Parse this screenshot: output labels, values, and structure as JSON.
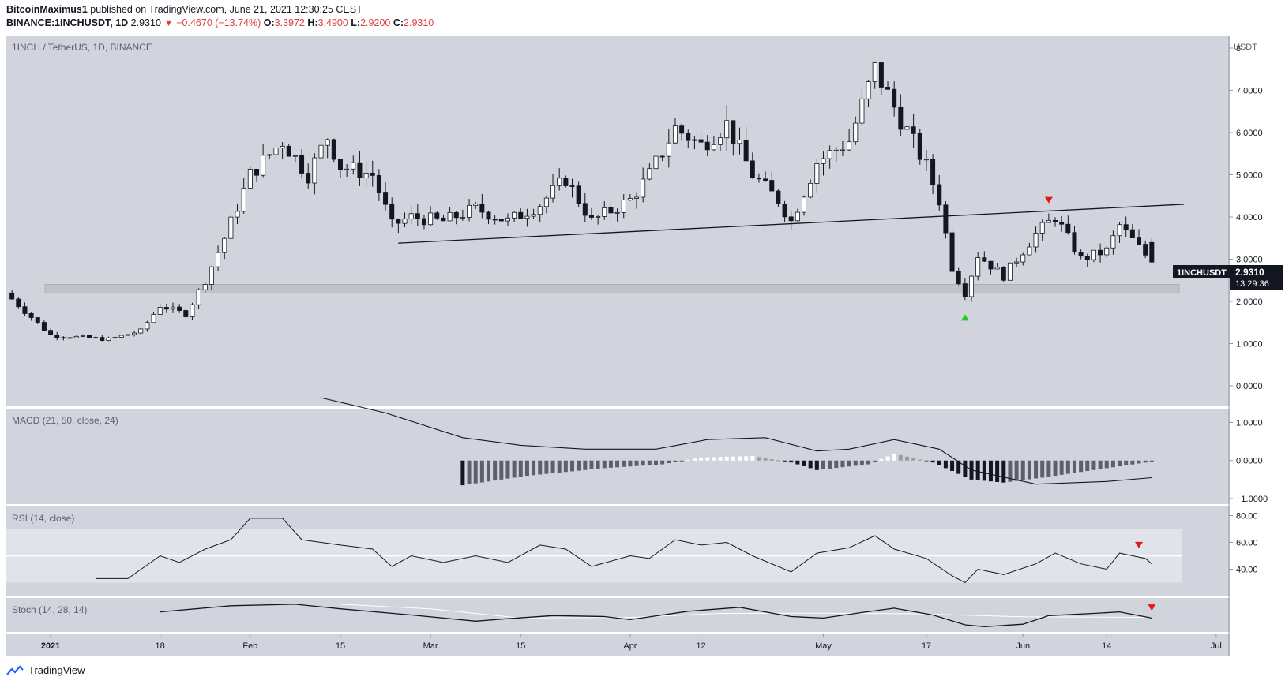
{
  "header": {
    "author": "BitcoinMaximus1",
    "published_text": "published on TradingView.com, June 21, 2021 12:30:25 CEST",
    "symbol_line": "BINANCE:1INCHUSDT, 1D",
    "last": "2.9310",
    "change": "−0.4670 (−13.74%)",
    "ohlc_labels": [
      "O:",
      "H:",
      "L:",
      "C:"
    ],
    "ohlc_values": [
      "3.3972",
      "3.4900",
      "2.9200",
      "2.9310"
    ]
  },
  "panes": {
    "main_label": "1INCH / TetherUS, 1D, BINANCE",
    "macd_label": "MACD (21, 50, close, 24)",
    "rsi_label": "RSI (14, close)",
    "stoch_label": "Stoch (14, 28, 14)"
  },
  "price_tag": {
    "symbol": "1INCHUSDT",
    "price": "2.9310",
    "countdown": "13:29:36"
  },
  "footer": {
    "brand": "TradingView"
  },
  "colors": {
    "pane_bg": "#d1d4dc",
    "up_candle": "#ffffff",
    "down_candle": "#131722",
    "marker_up": "#22cc22",
    "marker_down": "#e01818",
    "support_zone": "#bfc2c9"
  },
  "chart_data": {
    "type": "candlestick",
    "unit": "USDT",
    "x_axis": {
      "start": "2020-12-25",
      "end": "2021-07-02",
      "ticks": [
        {
          "date": "2021-01-01",
          "label": "2021"
        },
        {
          "date": "2021-01-18",
          "label": "18"
        },
        {
          "date": "2021-02-01",
          "label": "Feb"
        },
        {
          "date": "2021-02-15",
          "label": "15"
        },
        {
          "date": "2021-03-01",
          "label": "Mar"
        },
        {
          "date": "2021-03-15",
          "label": "15"
        },
        {
          "date": "2021-04-01",
          "label": "Apr"
        },
        {
          "date": "2021-04-12",
          "label": "12"
        },
        {
          "date": "2021-05-01",
          "label": "May"
        },
        {
          "date": "2021-05-17",
          "label": "17"
        },
        {
          "date": "2021-06-01",
          "label": "Jun"
        },
        {
          "date": "2021-06-14",
          "label": "14"
        },
        {
          "date": "2021-07-01",
          "label": "Jul"
        }
      ]
    },
    "price_axis": {
      "ylim": [
        0,
        8
      ],
      "ticks": [
        "0.0000",
        "1.0000",
        "2.0000",
        "3.0000",
        "4.0000",
        "5.0000",
        "6.0000",
        "7.0000",
        "8"
      ]
    },
    "support_zone": [
      2.2,
      2.4
    ],
    "trendline": {
      "start": {
        "date": "2021-02-24",
        "price": 3.38
      },
      "end": {
        "date": "2021-06-26",
        "price": 4.3
      }
    },
    "markers": [
      {
        "date": "2021-05-23",
        "price": 1.62,
        "direction": "up"
      },
      {
        "date": "2021-06-05",
        "price": 4.4,
        "direction": "down"
      }
    ],
    "price_path": [
      [
        "2020-12-25",
        2.2
      ],
      [
        "2021-01-01",
        1.2
      ],
      [
        "2021-01-10",
        1.1
      ],
      [
        "2021-01-15",
        1.3
      ],
      [
        "2021-01-18",
        1.9
      ],
      [
        "2021-01-22",
        1.7
      ],
      [
        "2021-01-25",
        2.5
      ],
      [
        "2021-01-28",
        3.5
      ],
      [
        "2021-02-01",
        5.0
      ],
      [
        "2021-02-06",
        5.8
      ],
      [
        "2021-02-10",
        5.0
      ],
      [
        "2021-02-13",
        5.9
      ],
      [
        "2021-02-15",
        5.2
      ],
      [
        "2021-02-20",
        5.0
      ],
      [
        "2021-02-23",
        3.8
      ],
      [
        "2021-02-26",
        4.0
      ],
      [
        "2021-03-03",
        3.9
      ],
      [
        "2021-03-08",
        4.2
      ],
      [
        "2021-03-13",
        3.9
      ],
      [
        "2021-03-18",
        4.3
      ],
      [
        "2021-03-22",
        4.9
      ],
      [
        "2021-03-26",
        3.9
      ],
      [
        "2021-04-01",
        4.4
      ],
      [
        "2021-04-04",
        5.0
      ],
      [
        "2021-04-08",
        6.1
      ],
      [
        "2021-04-12",
        5.7
      ],
      [
        "2021-04-16",
        6.2
      ],
      [
        "2021-04-20",
        5.0
      ],
      [
        "2021-04-24",
        4.4
      ],
      [
        "2021-04-26",
        3.9
      ],
      [
        "2021-04-30",
        5.3
      ],
      [
        "2021-05-05",
        5.8
      ],
      [
        "2021-05-09",
        7.5
      ],
      [
        "2021-05-12",
        6.6
      ],
      [
        "2021-05-17",
        5.2
      ],
      [
        "2021-05-19",
        4.4
      ],
      [
        "2021-05-21",
        2.8
      ],
      [
        "2021-05-23",
        2.2
      ],
      [
        "2021-05-25",
        3.1
      ],
      [
        "2021-05-29",
        2.6
      ],
      [
        "2021-06-03",
        3.6
      ],
      [
        "2021-06-06",
        4.0
      ],
      [
        "2021-06-10",
        3.0
      ],
      [
        "2021-06-14",
        3.2
      ],
      [
        "2021-06-16",
        3.8
      ],
      [
        "2021-06-21",
        2.93
      ]
    ],
    "macd_axis": {
      "ylim": [
        -1,
        1.3
      ],
      "ticks": [
        "1.0000",
        "0.0000",
        "−1.0000"
      ]
    },
    "macd_line": [
      [
        "2021-02-12",
        1.7
      ],
      [
        "2021-02-22",
        1.25
      ],
      [
        "2021-03-06",
        0.6
      ],
      [
        "2021-03-15",
        0.4
      ],
      [
        "2021-03-25",
        0.3
      ],
      [
        "2021-04-05",
        0.3
      ],
      [
        "2021-04-13",
        0.55
      ],
      [
        "2021-04-22",
        0.6
      ],
      [
        "2021-04-30",
        0.25
      ],
      [
        "2021-05-05",
        0.3
      ],
      [
        "2021-05-12",
        0.55
      ],
      [
        "2021-05-19",
        0.3
      ],
      [
        "2021-05-24",
        -0.25
      ],
      [
        "2021-06-03",
        -0.62
      ],
      [
        "2021-06-14",
        -0.55
      ],
      [
        "2021-06-21",
        -0.45
      ]
    ],
    "macd_histogram": [
      [
        "2021-03-06",
        -0.65
      ],
      [
        "2021-03-16",
        -0.4
      ],
      [
        "2021-03-28",
        -0.2
      ],
      [
        "2021-04-06",
        -0.1
      ],
      [
        "2021-04-12",
        0.08
      ],
      [
        "2021-04-20",
        0.12
      ],
      [
        "2021-04-26",
        -0.05
      ],
      [
        "2021-04-30",
        -0.25
      ],
      [
        "2021-05-08",
        -0.1
      ],
      [
        "2021-05-12",
        0.18
      ],
      [
        "2021-05-18",
        -0.05
      ],
      [
        "2021-05-24",
        -0.5
      ],
      [
        "2021-05-29",
        -0.58
      ],
      [
        "2021-06-04",
        -0.45
      ],
      [
        "2021-06-14",
        -0.2
      ],
      [
        "2021-06-21",
        -0.03
      ]
    ],
    "rsi_axis": {
      "ylim": [
        25,
        85
      ],
      "ticks": [
        "80.00",
        "60.00",
        "40.00"
      ],
      "band": [
        30,
        70
      ],
      "midline": 50
    },
    "rsi": [
      [
        "2021-01-08",
        33
      ],
      [
        "2021-01-13",
        33
      ],
      [
        "2021-01-18",
        50
      ],
      [
        "2021-01-21",
        45
      ],
      [
        "2021-01-25",
        55
      ],
      [
        "2021-01-29",
        62
      ],
      [
        "2021-02-01",
        78
      ],
      [
        "2021-02-06",
        78
      ],
      [
        "2021-02-09",
        62
      ],
      [
        "2021-02-15",
        58
      ],
      [
        "2021-02-20",
        55
      ],
      [
        "2021-02-23",
        42
      ],
      [
        "2021-02-26",
        50
      ],
      [
        "2021-03-03",
        45
      ],
      [
        "2021-03-08",
        50
      ],
      [
        "2021-03-13",
        45
      ],
      [
        "2021-03-18",
        58
      ],
      [
        "2021-03-22",
        55
      ],
      [
        "2021-03-26",
        42
      ],
      [
        "2021-04-01",
        50
      ],
      [
        "2021-04-04",
        48
      ],
      [
        "2021-04-08",
        62
      ],
      [
        "2021-04-12",
        58
      ],
      [
        "2021-04-16",
        60
      ],
      [
        "2021-04-20",
        50
      ],
      [
        "2021-04-26",
        38
      ],
      [
        "2021-04-30",
        52
      ],
      [
        "2021-05-05",
        56
      ],
      [
        "2021-05-09",
        65
      ],
      [
        "2021-05-12",
        55
      ],
      [
        "2021-05-17",
        48
      ],
      [
        "2021-05-21",
        35
      ],
      [
        "2021-05-23",
        30
      ],
      [
        "2021-05-25",
        40
      ],
      [
        "2021-05-29",
        36
      ],
      [
        "2021-06-03",
        44
      ],
      [
        "2021-06-06",
        52
      ],
      [
        "2021-06-10",
        44
      ],
      [
        "2021-06-14",
        40
      ],
      [
        "2021-06-16",
        52
      ],
      [
        "2021-06-20",
        48
      ],
      [
        "2021-06-21",
        44
      ]
    ],
    "stoch_k": [
      [
        "2021-01-18",
        60
      ],
      [
        "2021-01-29",
        80
      ],
      [
        "2021-02-08",
        85
      ],
      [
        "2021-02-15",
        70
      ],
      [
        "2021-02-26",
        50
      ],
      [
        "2021-03-08",
        30
      ],
      [
        "2021-03-13",
        38
      ],
      [
        "2021-03-20",
        48
      ],
      [
        "2021-03-28",
        45
      ],
      [
        "2021-04-01",
        35
      ],
      [
        "2021-04-10",
        62
      ],
      [
        "2021-04-18",
        75
      ],
      [
        "2021-04-26",
        45
      ],
      [
        "2021-05-01",
        40
      ],
      [
        "2021-05-07",
        58
      ],
      [
        "2021-05-12",
        72
      ],
      [
        "2021-05-18",
        50
      ],
      [
        "2021-05-23",
        18
      ],
      [
        "2021-05-26",
        12
      ],
      [
        "2021-06-01",
        20
      ],
      [
        "2021-06-05",
        48
      ],
      [
        "2021-06-12",
        55
      ],
      [
        "2021-06-16",
        60
      ],
      [
        "2021-06-21",
        40
      ]
    ],
    "stoch_d": [
      [
        "2021-02-15",
        85
      ],
      [
        "2021-03-01",
        70
      ],
      [
        "2021-03-15",
        40
      ],
      [
        "2021-04-01",
        42
      ],
      [
        "2021-04-15",
        55
      ],
      [
        "2021-05-01",
        56
      ],
      [
        "2021-05-15",
        54
      ],
      [
        "2021-06-01",
        44
      ],
      [
        "2021-06-21",
        42
      ]
    ],
    "rsi_markers": [
      {
        "date": "2021-06-19",
        "value": 58
      }
    ],
    "stoch_markers": [
      {
        "date": "2021-06-21",
        "value": 74
      }
    ]
  }
}
